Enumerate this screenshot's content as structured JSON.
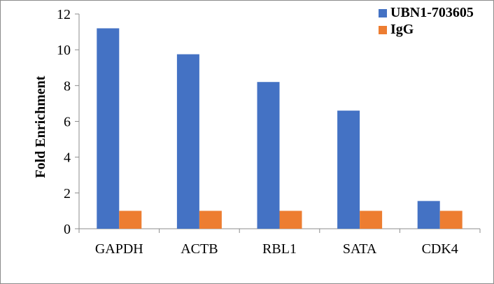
{
  "chart_data": {
    "type": "bar",
    "title": "",
    "xlabel": "",
    "ylabel": "Fold Enrichment",
    "ylim": [
      0,
      12
    ],
    "yticks": [
      0,
      2,
      4,
      6,
      8,
      10,
      12
    ],
    "categories": [
      "GAPDH",
      "ACTB",
      "RBL1",
      "SATA",
      "CDK4"
    ],
    "series": [
      {
        "name": "UBN1-703605",
        "color": "#4472c4",
        "values": [
          11.2,
          9.75,
          8.2,
          6.6,
          1.55
        ]
      },
      {
        "name": "IgG",
        "color": "#ed7d31",
        "values": [
          1,
          1,
          1,
          1,
          1
        ]
      }
    ],
    "legend_position": "top-right",
    "grid": false
  }
}
